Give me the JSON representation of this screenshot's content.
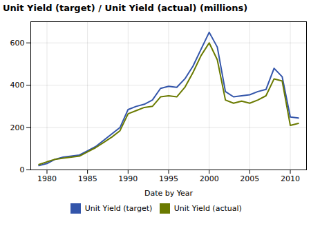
{
  "chart_data": {
    "type": "line",
    "title": "Unit Yield (target) / Unit Yield (actual) (millions)",
    "xlabel": "Date by Year",
    "x": [
      1979,
      1980,
      1981,
      1982,
      1983,
      1984,
      1985,
      1986,
      1987,
      1988,
      1989,
      1990,
      1991,
      1992,
      1993,
      1994,
      1995,
      1996,
      1997,
      1998,
      1999,
      2000,
      2001,
      2002,
      2003,
      2004,
      2005,
      2006,
      2007,
      2008,
      2009,
      2010,
      2011
    ],
    "series": [
      {
        "name": "Unit Yield (target)",
        "color": "#3355aa",
        "values": [
          20,
          30,
          50,
          60,
          65,
          70,
          90,
          110,
          140,
          170,
          200,
          285,
          300,
          310,
          330,
          385,
          395,
          390,
          430,
          490,
          570,
          650,
          580,
          370,
          345,
          350,
          355,
          370,
          380,
          480,
          440,
          250,
          245
        ]
      },
      {
        "name": "Unit Yield (actual)",
        "color": "#6a7a00",
        "values": [
          25,
          38,
          50,
          55,
          60,
          65,
          85,
          105,
          130,
          155,
          185,
          265,
          280,
          295,
          300,
          345,
          350,
          345,
          390,
          460,
          540,
          600,
          520,
          330,
          315,
          325,
          315,
          330,
          350,
          430,
          420,
          210,
          220
        ]
      }
    ],
    "xlim": [
      1978,
      2012
    ],
    "xticks": [
      1980,
      1985,
      1990,
      1995,
      2000,
      2005,
      2010
    ],
    "ylim": [
      0,
      700
    ],
    "yticks": [
      0,
      200,
      400,
      600
    ],
    "grid": true,
    "legend": "bottom"
  }
}
